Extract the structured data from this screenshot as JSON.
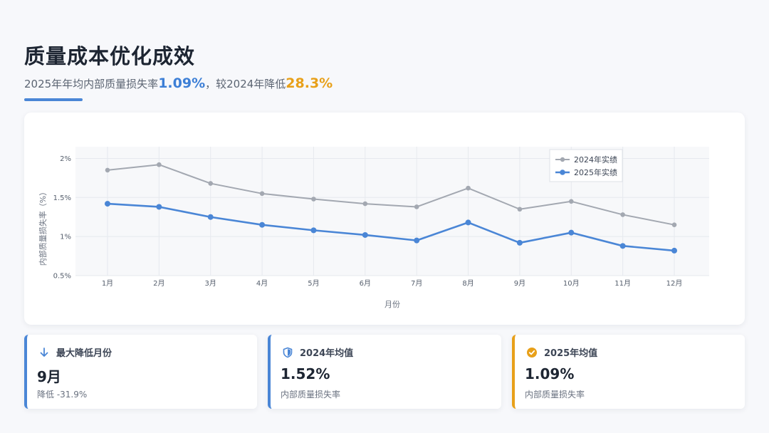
{
  "header": {
    "title": "质量成本优化成效",
    "subtitle_prefix": "2025年年均内部质量损失率",
    "subtitle_value": "1.09%",
    "subtitle_mid": "，较2024年降低",
    "subtitle_reduction": "28.3%"
  },
  "chart_data": {
    "type": "line",
    "categories": [
      "1月",
      "2月",
      "3月",
      "4月",
      "5月",
      "6月",
      "7月",
      "8月",
      "9月",
      "10月",
      "11月",
      "12月"
    ],
    "series": [
      {
        "name": "2024年实绩",
        "color": "#a3a8b1",
        "values": [
          1.85,
          1.92,
          1.68,
          1.55,
          1.48,
          1.42,
          1.38,
          1.62,
          1.35,
          1.45,
          1.28,
          1.15
        ]
      },
      {
        "name": "2025年实绩",
        "color": "#4a86d6",
        "values": [
          1.42,
          1.38,
          1.25,
          1.15,
          1.08,
          1.02,
          0.95,
          1.18,
          0.92,
          1.05,
          0.88,
          0.82
        ]
      }
    ],
    "y_ticks": [
      "0.5%",
      "1%",
      "1.5%",
      "2%"
    ],
    "y_tick_values": [
      0.5,
      1.0,
      1.5,
      2.0
    ],
    "ylim": [
      0.5,
      2.15
    ],
    "xlabel": "月份",
    "ylabel": "内部质量损失率（%）",
    "grid": true,
    "legend_position": "top-right"
  },
  "stats": [
    {
      "title": "最大降低月份",
      "value": "9月",
      "desc": "降低 -31.9%",
      "icon": "arrow-down-icon",
      "accent": "#4a86d6"
    },
    {
      "title": "2024年均值",
      "value": "1.52%",
      "desc": "内部质量损失率",
      "icon": "shield-icon",
      "accent": "#4a86d6"
    },
    {
      "title": "2025年均值",
      "value": "1.09%",
      "desc": "内部质量损失率",
      "icon": "check-badge-icon",
      "accent": "#e8a019"
    }
  ]
}
